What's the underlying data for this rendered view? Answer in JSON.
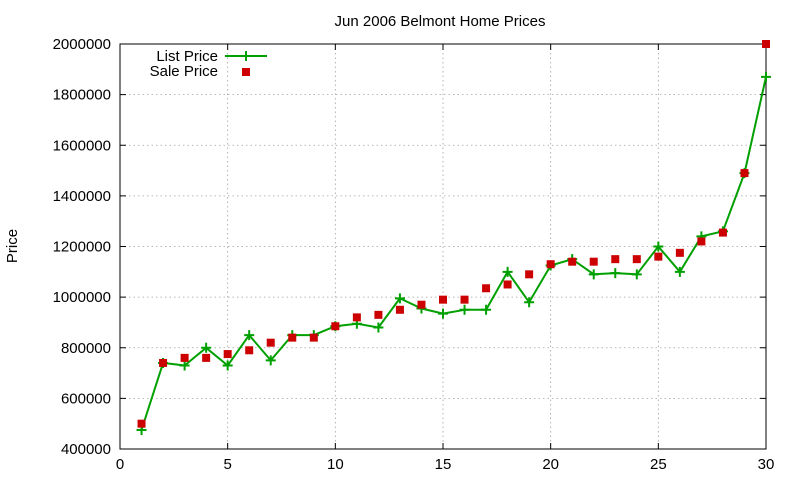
{
  "chart_data": {
    "type": "line",
    "title": "Jun 2006 Belmont Home Prices",
    "xlabel": "",
    "ylabel": "Price",
    "xlim": [
      0,
      30
    ],
    "ylim": [
      400000,
      2000000
    ],
    "xticks": [
      0,
      5,
      10,
      15,
      20,
      25,
      30
    ],
    "xtick_labels": [
      "0",
      "5",
      "10",
      "15",
      "20",
      "25",
      "30"
    ],
    "yticks": [
      400000,
      600000,
      800000,
      1000000,
      1200000,
      1400000,
      1600000,
      1800000,
      2000000
    ],
    "ytick_labels": [
      "400000",
      "600000",
      "800000",
      "1000000",
      "1200000",
      "1400000",
      "1600000",
      "1800000",
      "2000000"
    ],
    "grid": true,
    "legend_position": "top-left",
    "x": [
      1,
      2,
      3,
      4,
      5,
      6,
      7,
      8,
      9,
      10,
      11,
      12,
      13,
      14,
      15,
      16,
      17,
      18,
      19,
      20,
      21,
      22,
      23,
      24,
      25,
      26,
      27,
      28,
      29,
      30
    ],
    "series": [
      {
        "name": "List Price",
        "style": "line+cross",
        "color": "#00a000",
        "values": [
          475000,
          740000,
          730000,
          800000,
          730000,
          850000,
          750000,
          850000,
          850000,
          885000,
          895000,
          880000,
          995000,
          955000,
          935000,
          950000,
          950000,
          1100000,
          980000,
          1125000,
          1150000,
          1090000,
          1095000,
          1090000,
          1200000,
          1100000,
          1240000,
          1260000,
          1490000,
          1870000
        ]
      },
      {
        "name": "Sale Price",
        "style": "square",
        "color": "#cc0000",
        "values": [
          500000,
          740000,
          760000,
          760000,
          775000,
          790000,
          820000,
          840000,
          840000,
          885000,
          920000,
          930000,
          950000,
          970000,
          990000,
          990000,
          1035000,
          1050000,
          1090000,
          1130000,
          1140000,
          1140000,
          1150000,
          1150000,
          1160000,
          1175000,
          1220000,
          1255000,
          1490000,
          2000000
        ]
      }
    ]
  }
}
